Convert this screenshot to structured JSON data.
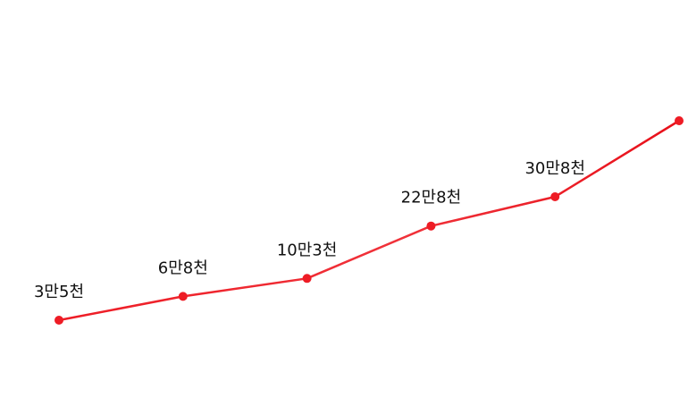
{
  "chart_data": {
    "type": "line",
    "title": "",
    "xlabel": "",
    "ylabel": "",
    "grid": false,
    "legend": "none",
    "x": [
      1,
      2,
      3,
      4,
      5,
      6
    ],
    "ylim": [
      0,
      600000
    ],
    "series": [
      {
        "values": [
          35000,
          68000,
          103000,
          228000,
          308000,
          540000
        ],
        "data_labels": [
          "3만5천",
          "6만8천",
          "10만3천",
          "22만8천",
          "30만8천",
          ""
        ],
        "color": "#ee1c25",
        "marker_color": "#ee1c25"
      }
    ]
  }
}
